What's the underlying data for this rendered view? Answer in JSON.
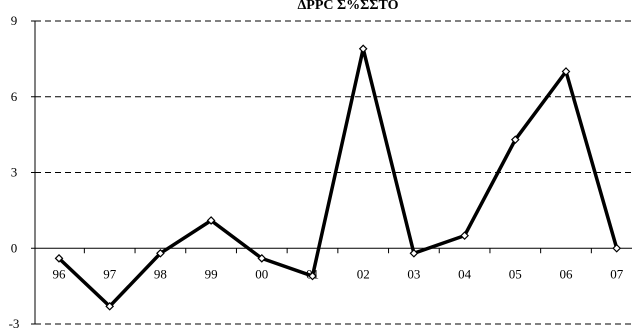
{
  "chart_data": {
    "type": "line",
    "title": "ΔPPC Σ%ΣΣΤΟ",
    "xlabel": "",
    "ylabel": "",
    "categories": [
      "96",
      "97",
      "98",
      "99",
      "00",
      "01",
      "02",
      "03",
      "04",
      "05",
      "06",
      "07"
    ],
    "series": [
      {
        "values": [
          -0.4,
          -2.3,
          -0.2,
          1.1,
          -0.4,
          -1.1,
          7.9,
          -0.2,
          0.5,
          4.3,
          7.0,
          0.0
        ]
      }
    ],
    "ylim": [
      -3,
      9
    ],
    "yticks": [
      -3,
      0,
      3,
      6,
      9
    ],
    "grid": "horizontal-dashed",
    "legend": "none",
    "colors": {
      "line": "#000000",
      "marker_fill": "#ffffff",
      "grid": "#000000",
      "axis": "#000000"
    }
  }
}
